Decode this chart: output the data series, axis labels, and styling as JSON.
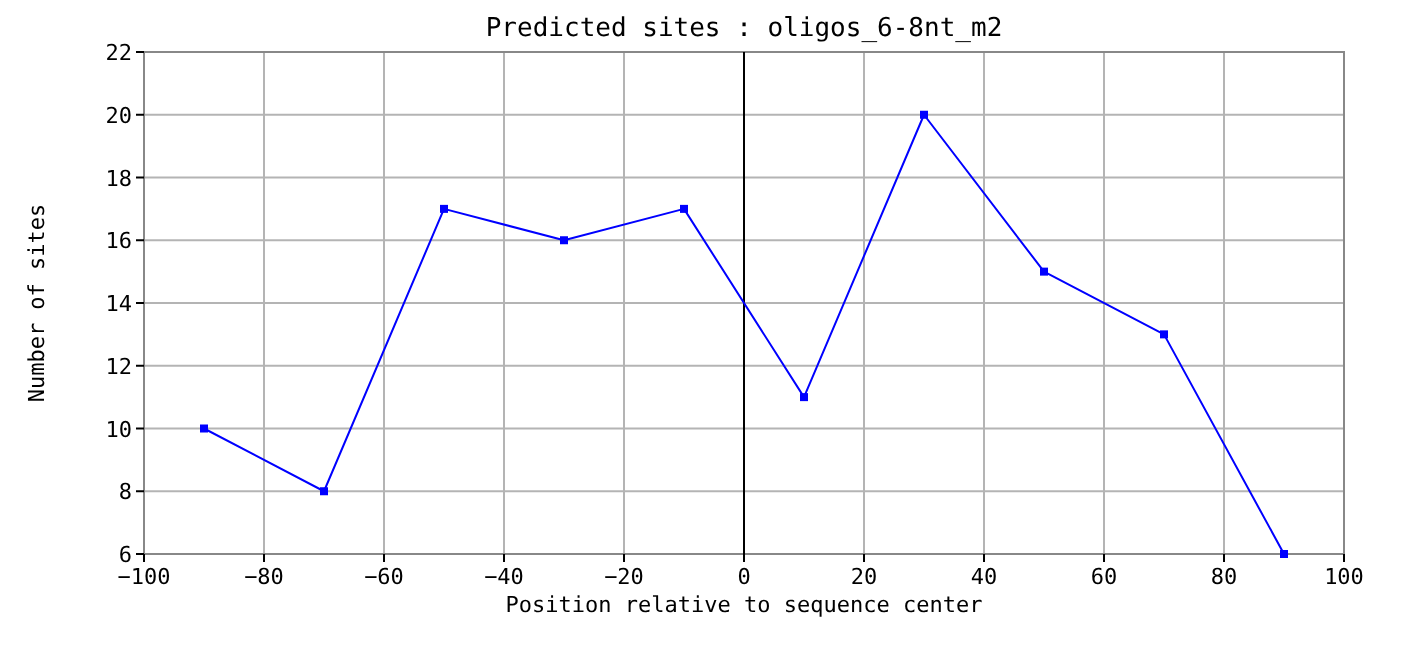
{
  "chart_data": {
    "type": "line",
    "title": "Predicted sites : oligos_6-8nt_m2",
    "xlabel": "Position relative to sequence center",
    "ylabel": "Number of sites",
    "x": [
      -90,
      -70,
      -50,
      -30,
      -10,
      10,
      30,
      50,
      70,
      90
    ],
    "series": [
      {
        "color": "#0000ff",
        "values": [
          10,
          8,
          17,
          16,
          17,
          11,
          20,
          15,
          13,
          6
        ]
      }
    ],
    "xlim": [
      -100,
      100
    ],
    "xticks": [
      -100,
      -80,
      -60,
      -40,
      -20,
      0,
      20,
      40,
      60,
      80,
      100
    ],
    "ylim": [
      6,
      22
    ],
    "yticks": [
      6,
      8,
      10,
      12,
      14,
      16,
      18,
      20,
      22
    ],
    "grid": true,
    "marker": "square",
    "line_style": "solid",
    "ref_lines": [
      {
        "axis": "x",
        "value": 0,
        "color": "#000000"
      }
    ]
  }
}
